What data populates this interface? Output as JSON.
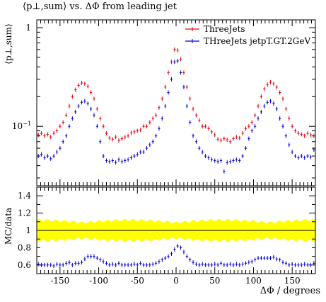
{
  "chart_data": [
    {
      "type": "scatter",
      "panel": "main",
      "title": "⟨p⊥,sum⟩ vs. ΔΦ from leading jet",
      "ylabel": "⟨p⊥,sum⟩",
      "yscale": "log",
      "ylim": [
        0.025,
        1.2
      ],
      "xlim": [
        -180,
        180
      ],
      "legend_position": "top-right",
      "x": [
        -178,
        -174,
        -170,
        -166,
        -162,
        -158,
        -154,
        -150,
        -146,
        -142,
        -138,
        -134,
        -130,
        -126,
        -122,
        -118,
        -114,
        -110,
        -106,
        -102,
        -98,
        -94,
        -90,
        -86,
        -82,
        -78,
        -74,
        -70,
        -66,
        -62,
        -58,
        -54,
        -50,
        -46,
        -42,
        -38,
        -34,
        -30,
        -26,
        -22,
        -18,
        -14,
        -10,
        -6,
        -2,
        2,
        6,
        10,
        14,
        18,
        22,
        26,
        30,
        34,
        38,
        42,
        46,
        50,
        54,
        58,
        62,
        66,
        70,
        74,
        78,
        82,
        86,
        90,
        94,
        98,
        102,
        106,
        110,
        114,
        118,
        122,
        126,
        130,
        134,
        138,
        142,
        146,
        150,
        154,
        158,
        162,
        166,
        170,
        174,
        178
      ],
      "series": [
        {
          "name": "ThreeJets",
          "color": "#e8000b",
          "values": [
            0.082,
            0.085,
            0.08,
            0.083,
            0.078,
            0.085,
            0.09,
            0.1,
            0.11,
            0.13,
            0.16,
            0.2,
            0.235,
            0.26,
            0.275,
            0.27,
            0.255,
            0.22,
            0.19,
            0.15,
            0.12,
            0.1,
            0.085,
            0.076,
            0.074,
            0.078,
            0.072,
            0.075,
            0.078,
            0.08,
            0.086,
            0.088,
            0.09,
            0.092,
            0.1,
            0.1,
            0.11,
            0.12,
            0.13,
            0.155,
            0.19,
            0.25,
            0.35,
            0.45,
            0.6,
            0.59,
            0.48,
            0.35,
            0.25,
            0.19,
            0.15,
            0.13,
            0.115,
            0.1,
            0.1,
            0.095,
            0.088,
            0.082,
            0.074,
            0.072,
            0.075,
            0.073,
            0.07,
            0.075,
            0.078,
            0.076,
            0.085,
            0.095,
            0.1,
            0.11,
            0.13,
            0.16,
            0.2,
            0.24,
            0.265,
            0.28,
            0.27,
            0.25,
            0.22,
            0.19,
            0.15,
            0.12,
            0.1,
            0.09,
            0.085,
            0.083,
            0.08,
            0.085,
            0.082,
            0.08
          ]
        },
        {
          "name": "THreeJets jetpT.GT.2GeV",
          "color": "#0000e0",
          "values": [
            0.05,
            0.052,
            0.048,
            0.05,
            0.047,
            0.05,
            0.055,
            0.06,
            0.07,
            0.08,
            0.1,
            0.12,
            0.14,
            0.16,
            0.175,
            0.18,
            0.17,
            0.15,
            0.13,
            0.1,
            0.07,
            0.05,
            0.045,
            0.044,
            0.045,
            0.043,
            0.046,
            0.044,
            0.045,
            0.046,
            0.048,
            0.05,
            0.052,
            0.055,
            0.055,
            0.06,
            0.065,
            0.07,
            0.08,
            0.095,
            0.12,
            0.16,
            0.22,
            0.3,
            0.45,
            0.46,
            0.35,
            0.25,
            0.16,
            0.11,
            0.08,
            0.07,
            0.06,
            0.055,
            0.05,
            0.048,
            0.046,
            0.045,
            0.044,
            0.045,
            0.035,
            0.043,
            0.044,
            0.045,
            0.046,
            0.045,
            0.05,
            0.06,
            0.075,
            0.09,
            0.1,
            0.12,
            0.14,
            0.16,
            0.175,
            0.18,
            0.17,
            0.15,
            0.12,
            0.1,
            0.08,
            0.065,
            0.055,
            0.05,
            0.048,
            0.05,
            0.048,
            0.05,
            0.049,
            0.058
          ]
        }
      ]
    },
    {
      "type": "scatter",
      "panel": "ratio",
      "ylabel": "MC/data",
      "xlabel": "ΔΦ / degrees",
      "xlim": [
        -180,
        180
      ],
      "ylim": [
        0.5,
        1.5
      ],
      "yticks": [
        "0.6",
        "0.8",
        "1",
        "1.2",
        "1.4"
      ],
      "xticks": [
        "-150",
        "-100",
        "-50",
        "0",
        "50",
        "100",
        "150"
      ],
      "band_color": "#ffff00",
      "reference_line": 1,
      "series": [
        {
          "name": "THreeJets jetpT.GT.2GeV",
          "color": "#0000e0",
          "values": [
            0.61,
            0.6,
            0.6,
            0.6,
            0.6,
            0.59,
            0.61,
            0.6,
            0.6,
            0.62,
            0.63,
            0.6,
            0.62,
            0.62,
            0.63,
            0.67,
            0.7,
            0.7,
            0.7,
            0.68,
            0.66,
            0.64,
            0.62,
            0.6,
            0.61,
            0.6,
            0.62,
            0.6,
            0.6,
            0.6,
            0.6,
            0.61,
            0.6,
            0.62,
            0.6,
            0.6,
            0.6,
            0.61,
            0.62,
            0.64,
            0.66,
            0.68,
            0.7,
            0.73,
            0.78,
            0.82,
            0.8,
            0.75,
            0.7,
            0.66,
            0.63,
            0.61,
            0.6,
            0.61,
            0.6,
            0.6,
            0.6,
            0.61,
            0.6,
            0.62,
            0.6,
            0.6,
            0.61,
            0.6,
            0.61,
            0.6,
            0.61,
            0.62,
            0.63,
            0.64,
            0.66,
            0.68,
            0.68,
            0.68,
            0.68,
            0.68,
            0.69,
            0.67,
            0.66,
            0.63,
            0.62,
            0.6,
            0.61,
            0.6,
            0.6,
            0.6,
            0.61,
            0.6,
            0.6,
            0.62
          ]
        }
      ]
    }
  ]
}
